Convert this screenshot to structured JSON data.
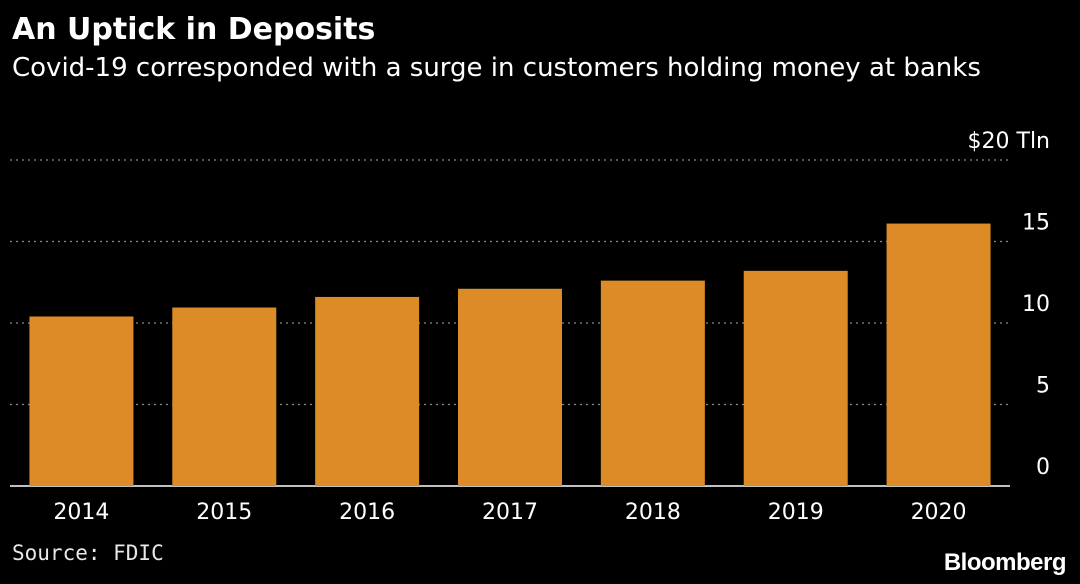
{
  "header": {
    "title": "An Uptick in Deposits",
    "subtitle": "Covid-19 corresponded with a surge in customers holding money at banks"
  },
  "footer": {
    "source": "Source: FDIC",
    "logo": "Bloomberg"
  },
  "colors": {
    "background": "#000000",
    "bar": "#dd8b26",
    "gridline": "#8a8a8a",
    "text": "#ffffff"
  },
  "chart_data": {
    "type": "bar",
    "title": "An Uptick in Deposits",
    "subtitle": "Covid-19 corresponded with a surge in customers holding money at banks",
    "categories": [
      "2014",
      "2015",
      "2016",
      "2017",
      "2018",
      "2019",
      "2020"
    ],
    "values": [
      10.4,
      10.95,
      11.6,
      12.1,
      12.6,
      13.2,
      16.1
    ],
    "ylim": [
      0,
      20
    ],
    "yticks": [
      0,
      5,
      10,
      15,
      20
    ],
    "ytick_labels": [
      "0",
      "5",
      "10",
      "15",
      "$20 Tln"
    ],
    "y_axis_position": "right",
    "grid": true,
    "grid_style": "dotted",
    "legend": "none"
  }
}
